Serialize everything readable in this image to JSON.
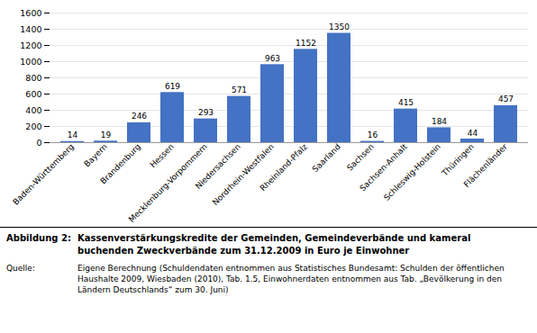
{
  "chart_data": {
    "type": "bar",
    "title": "Abbildung 2:",
    "subtitle": "Kassenverstärkungskredite der Gemeinden, Gemeindeverbände und kameral buchenden Zweckverbände zum 31.12.2009 in Euro je Einwohner",
    "annotations": [
      "Quelle:",
      "Eigene Berechnung (Schuldendaten entnommen aus Statistisches Bundesamt: Schulden der öffentlichen Haushalte 2009, Wiesbaden (2010), Tab. 1.5, Einwohnerdaten entnommen aus Tab. „Bevölkerung in den Ländern Deutschlands“ zum 30. Juni)"
    ],
    "categories": [
      "Baden-Württemberg",
      "Bayern",
      "Brandenburg",
      "Hessen",
      "Mecklenburg-Vorpommern",
      "Niedersachsen",
      "Nordrhein-Westfalen",
      "Rheinland-Pfalz",
      "Saarland",
      "Sachsen",
      "Sachsen-Anhalt",
      "Schleswig-Holstein",
      "Thüringen",
      "Flächenländer"
    ],
    "values": [
      14,
      19,
      246,
      619,
      293,
      571,
      963,
      1152,
      1350,
      16,
      415,
      184,
      44,
      457
    ],
    "color": "#4472c4",
    "ylim": [
      0,
      1600
    ],
    "yticks": [
      0,
      200,
      400,
      600,
      800,
      1000,
      1200,
      1400,
      1600
    ],
    "grid": true,
    "data_labels": true
  }
}
